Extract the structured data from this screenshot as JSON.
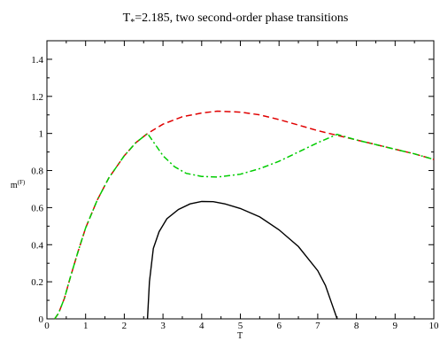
{
  "chart_data": {
    "type": "line",
    "title": "T<sub>*</sub>=2.185, two second-order phase transitions",
    "title_main": "T",
    "title_sub": "*",
    "title_rest": "=2.185, two second-order phase transitions",
    "xlabel": "T",
    "ylabel_main": "m",
    "ylabel_sup": "(F)",
    "xlim": [
      0,
      10
    ],
    "ylim": [
      0,
      1.5
    ],
    "x_ticks": [
      0,
      1,
      2,
      3,
      4,
      5,
      6,
      7,
      8,
      9,
      10
    ],
    "x_tick_labels": [
      "0",
      "1",
      "2",
      "3",
      "4",
      "5",
      "6",
      "7",
      "8",
      "9",
      "10"
    ],
    "y_ticks": [
      0,
      0.2,
      0.4,
      0.6,
      0.8,
      1,
      1.2,
      1.4
    ],
    "y_tick_labels": [
      "0",
      "0.2",
      "0.4",
      "0.6",
      "0.8",
      "1",
      "1.2",
      "1.4"
    ],
    "grid": false,
    "series": [
      {
        "color": "#e00000",
        "dash": "dashed",
        "x": [
          0.2,
          0.3,
          0.45,
          0.6,
          0.8,
          1.0,
          1.3,
          1.6,
          2.0,
          2.3,
          2.6,
          3.0,
          3.5,
          4.0,
          4.4,
          5.0,
          5.5,
          6.0,
          6.5,
          7.0,
          7.5,
          8.0,
          8.5,
          9.0,
          9.5,
          10.0
        ],
        "y": [
          0.0,
          0.03,
          0.11,
          0.22,
          0.36,
          0.49,
          0.64,
          0.76,
          0.88,
          0.95,
          1.0,
          1.05,
          1.09,
          1.11,
          1.12,
          1.115,
          1.1,
          1.075,
          1.045,
          1.015,
          0.99,
          0.965,
          0.94,
          0.915,
          0.89,
          0.86
        ]
      },
      {
        "color": "#00cc00",
        "dash": "dashdot",
        "x": [
          0.2,
          0.3,
          0.45,
          0.6,
          0.8,
          1.0,
          1.3,
          1.6,
          2.0,
          2.3,
          2.6,
          2.8,
          3.0,
          3.3,
          3.6,
          4.0,
          4.4,
          5.0,
          5.5,
          6.0,
          6.5,
          7.0,
          7.5,
          8.0,
          8.5,
          9.0,
          9.5,
          10.0
        ],
        "y": [
          0.0,
          0.03,
          0.11,
          0.22,
          0.36,
          0.49,
          0.64,
          0.76,
          0.88,
          0.95,
          1.0,
          0.94,
          0.88,
          0.82,
          0.785,
          0.768,
          0.765,
          0.78,
          0.81,
          0.85,
          0.9,
          0.95,
          0.995,
          0.965,
          0.94,
          0.915,
          0.89,
          0.86
        ]
      },
      {
        "color": "#000000",
        "dash": "solid",
        "x": [
          2.6,
          2.65,
          2.75,
          2.9,
          3.1,
          3.4,
          3.7,
          4.0,
          4.3,
          4.6,
          5.0,
          5.5,
          6.0,
          6.5,
          7.0,
          7.2,
          7.35,
          7.5
        ],
        "y": [
          0.0,
          0.2,
          0.38,
          0.47,
          0.54,
          0.59,
          0.62,
          0.633,
          0.632,
          0.62,
          0.595,
          0.55,
          0.48,
          0.39,
          0.26,
          0.18,
          0.09,
          0.0
        ]
      }
    ]
  }
}
